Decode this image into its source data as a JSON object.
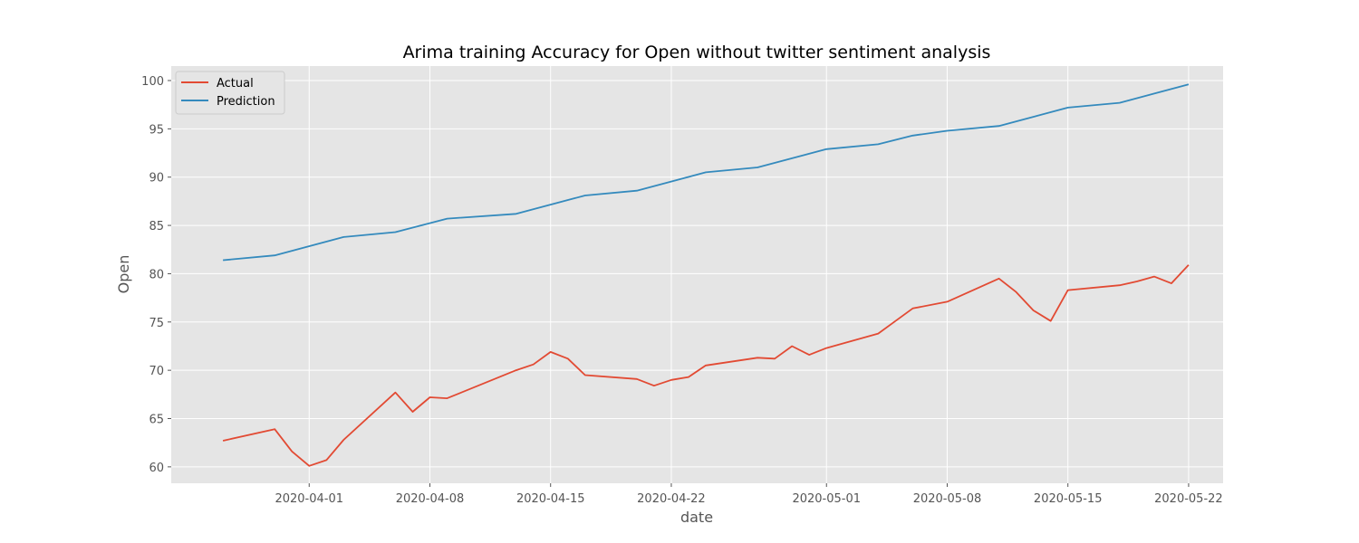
{
  "chart_data": {
    "type": "line",
    "title": "Arima training Accuracy for Open without twitter sentiment analysis",
    "xlabel": "date",
    "ylabel": "Open",
    "x_ticks": [
      "2020-04-01",
      "2020-04-08",
      "2020-04-15",
      "2020-04-22",
      "2020-05-01",
      "2020-05-08",
      "2020-05-15",
      "2020-05-22"
    ],
    "y_ticks": [
      60,
      65,
      70,
      75,
      80,
      85,
      90,
      95,
      100
    ],
    "xlim": [
      "2020-03-24",
      "2020-05-24"
    ],
    "ylim": [
      58.3,
      101.5
    ],
    "grid": true,
    "legend_position": "top-left",
    "background": "#e5e5e5",
    "series": [
      {
        "name": "Actual",
        "color": "#e24a33",
        "points": [
          [
            "2020-03-27",
            62.7
          ],
          [
            "2020-03-30",
            63.9
          ],
          [
            "2020-03-31",
            61.6
          ],
          [
            "2020-04-01",
            60.1
          ],
          [
            "2020-04-02",
            60.7
          ],
          [
            "2020-04-03",
            62.8
          ],
          [
            "2020-04-06",
            67.7
          ],
          [
            "2020-04-07",
            65.7
          ],
          [
            "2020-04-08",
            67.2
          ],
          [
            "2020-04-09",
            67.1
          ],
          [
            "2020-04-13",
            70.0
          ],
          [
            "2020-04-14",
            70.6
          ],
          [
            "2020-04-15",
            71.9
          ],
          [
            "2020-04-16",
            71.2
          ],
          [
            "2020-04-17",
            69.5
          ],
          [
            "2020-04-20",
            69.1
          ],
          [
            "2020-04-21",
            68.4
          ],
          [
            "2020-04-22",
            69.0
          ],
          [
            "2020-04-23",
            69.3
          ],
          [
            "2020-04-24",
            70.5
          ],
          [
            "2020-04-27",
            71.3
          ],
          [
            "2020-04-28",
            71.2
          ],
          [
            "2020-04-29",
            72.5
          ],
          [
            "2020-04-30",
            71.6
          ],
          [
            "2020-05-01",
            72.3
          ],
          [
            "2020-05-04",
            73.8
          ],
          [
            "2020-05-05",
            75.1
          ],
          [
            "2020-05-06",
            76.4
          ],
          [
            "2020-05-08",
            77.1
          ],
          [
            "2020-05-11",
            79.5
          ],
          [
            "2020-05-12",
            78.1
          ],
          [
            "2020-05-13",
            76.2
          ],
          [
            "2020-05-14",
            75.1
          ],
          [
            "2020-05-15",
            78.3
          ],
          [
            "2020-05-18",
            78.8
          ],
          [
            "2020-05-19",
            79.2
          ],
          [
            "2020-05-20",
            79.7
          ],
          [
            "2020-05-21",
            79.0
          ],
          [
            "2020-05-22",
            80.9
          ]
        ]
      },
      {
        "name": "Prediction",
        "color": "#348abd",
        "points": [
          [
            "2020-03-27",
            81.4
          ],
          [
            "2020-03-30",
            81.9
          ],
          [
            "2020-04-03",
            83.8
          ],
          [
            "2020-04-06",
            84.3
          ],
          [
            "2020-04-09",
            85.7
          ],
          [
            "2020-04-13",
            86.2
          ],
          [
            "2020-04-17",
            88.1
          ],
          [
            "2020-04-20",
            88.6
          ],
          [
            "2020-04-24",
            90.5
          ],
          [
            "2020-04-27",
            91.0
          ],
          [
            "2020-05-01",
            92.9
          ],
          [
            "2020-05-04",
            93.4
          ],
          [
            "2020-05-06",
            94.3
          ],
          [
            "2020-05-08",
            94.8
          ],
          [
            "2020-05-11",
            95.3
          ],
          [
            "2020-05-15",
            97.2
          ],
          [
            "2020-05-18",
            97.7
          ],
          [
            "2020-05-22",
            99.6
          ]
        ]
      }
    ]
  }
}
